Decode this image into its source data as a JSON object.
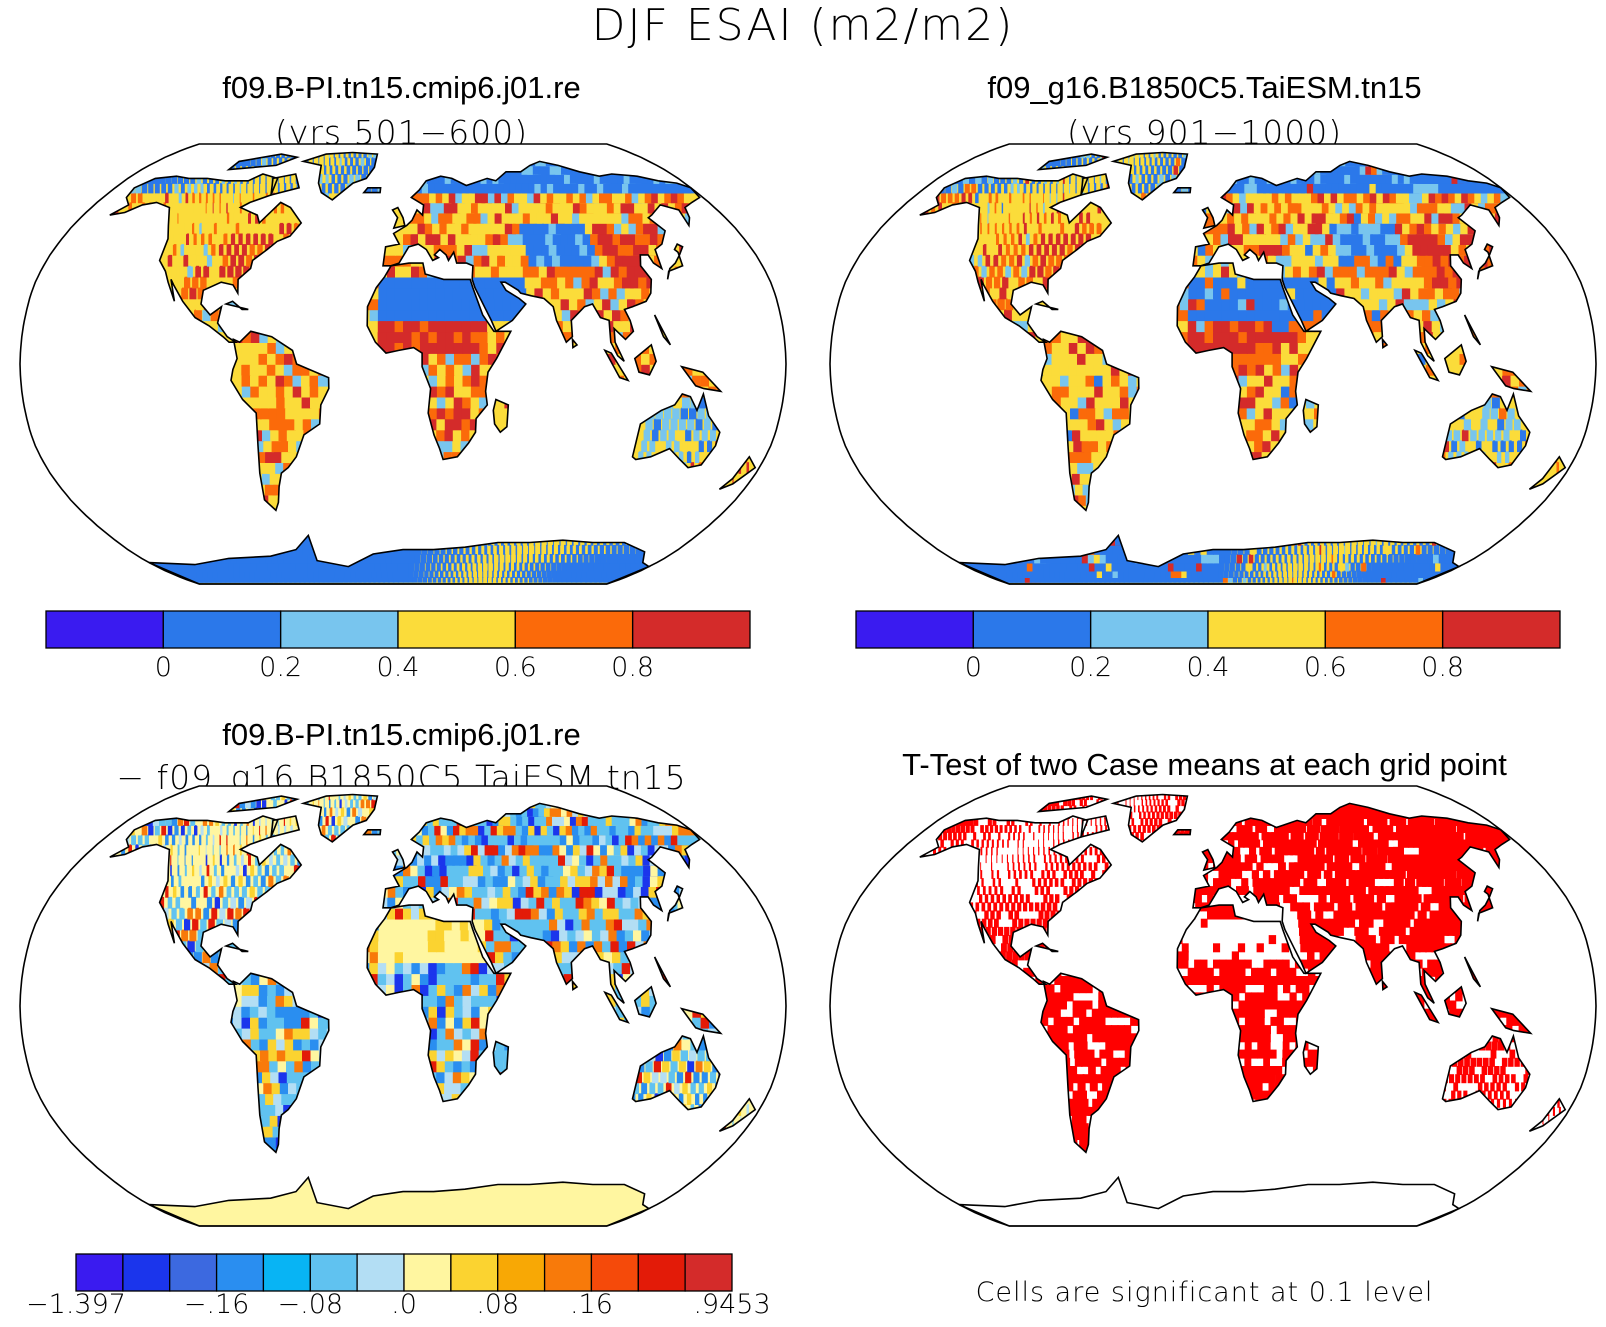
{
  "figure": {
    "title": "DJF ESAI (m2/m2)",
    "panels": [
      {
        "title": "f09.B-PI.tn15.cmip6.j01.re",
        "subtitle": "(yrs 501−600)"
      },
      {
        "title": "f09_g16.B1850C5.TaiESM.tn15",
        "subtitle": "(yrs 901−1000)"
      },
      {
        "title": "f09.B-PI.tn15.cmip6.j01.re",
        "subtitle": "− f09_g16.B1850C5.TaiESM.tn15"
      },
      {
        "title": "T-Test of two Case means at each grid point",
        "subtitle": ""
      }
    ],
    "footnote": "Cells are significant at 0.1 level"
  },
  "colorbars": {
    "abs": {
      "colors": [
        "#3a1bf0",
        "#2b78ea",
        "#78c5ee",
        "#fbdc3a",
        "#fb6a0a",
        "#d42b2a"
      ],
      "tick_labels": [
        "0",
        "0.2",
        "0.4",
        "0.6",
        "0.8"
      ]
    },
    "diff": {
      "colors": [
        "#3a1bf0",
        "#1b35ec",
        "#3c69e0",
        "#2a8ef0",
        "#08b4f4",
        "#60c2f0",
        "#b3def4",
        "#fff6a0",
        "#fbd330",
        "#f8a805",
        "#f87a0a",
        "#f54a0a",
        "#e31b08",
        "#d42b2a"
      ],
      "tick_labels": [
        "−1.397",
        "−.16",
        "−.08",
        ".0",
        ".08",
        ".16",
        ".9453"
      ]
    }
  },
  "map_colors": {
    "ocean": "#ffffff",
    "abs_fill": [
      "#2b78ea",
      "#fbdc3a",
      "#fb6a0a",
      "#d42b2a",
      "#78c5ee"
    ],
    "diff_fill": [
      "#fff6a0",
      "#60c2f0",
      "#2a8ef0",
      "#fbd330",
      "#f87a0a",
      "#e31b08",
      "#1b35ec"
    ],
    "signif": "#ff0000"
  }
}
